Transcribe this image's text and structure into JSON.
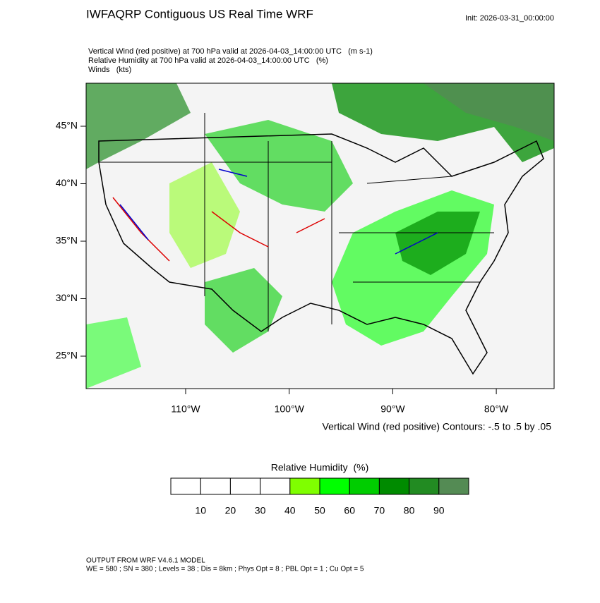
{
  "header": {
    "title": "IWFAQRP Contiguous US Real Time WRF",
    "init": "Init: 2026-03-31_00:00:00"
  },
  "fields": [
    "Vertical Wind (red positive) at 700 hPa valid at 2026-04-03_14:00:00 UTC   (m s-1)",
    "Relative Humidity at 700 hPa valid at 2026-04-03_14:00:00 UTC   (%)",
    "Winds   (kts)"
  ],
  "map": {
    "lat_ticks": [
      {
        "value": 45,
        "label": "45°N"
      },
      {
        "value": 40,
        "label": "40°N"
      },
      {
        "value": 35,
        "label": "35°N"
      },
      {
        "value": 30,
        "label": "30°N"
      },
      {
        "value": 25,
        "label": "25°N"
      }
    ],
    "lon_ticks": [
      {
        "value": -110,
        "label": "110°W"
      },
      {
        "value": -100,
        "label": "100°W"
      },
      {
        "value": -90,
        "label": "90°W"
      },
      {
        "value": -80,
        "label": "80°W"
      }
    ],
    "contour_note": "Vertical Wind (red positive) Contours: -.5 to .5 by .05"
  },
  "colorbar": {
    "title": "Relative Humidity  (%)",
    "levels": [
      10,
      20,
      30,
      40,
      50,
      60,
      70,
      80,
      90
    ],
    "colors": [
      "#ffffff",
      "#ffffff",
      "#ffffff",
      "#ffffff",
      "#7fff00",
      "#00ff00",
      "#00cd00",
      "#008b00",
      "#228b22",
      "#548b54"
    ]
  },
  "footer": [
    "OUTPUT FROM WRF V4.6.1 MODEL",
    "WE = 580 ; SN = 380 ; Levels = 38 ; Dis = 8km ; Phys Opt = 8 ; PBL Opt = 1 ; Cu Opt = 5"
  ]
}
